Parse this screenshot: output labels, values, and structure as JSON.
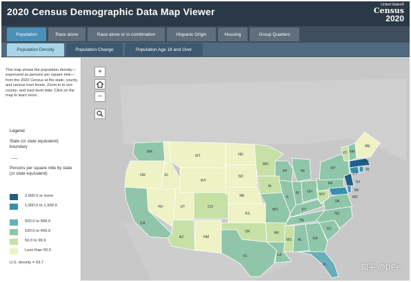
{
  "header": {
    "title": "2020 Census Demographic Data Map Viewer",
    "logo_small": "United States®",
    "logo_big": "Census",
    "logo_year": "2020"
  },
  "main_tabs": [
    {
      "label": "Population",
      "active": true
    },
    {
      "label": "Race alone",
      "active": false
    },
    {
      "label": "Race alone or in combination",
      "active": false
    },
    {
      "label": "Hispanic Origin",
      "active": false
    },
    {
      "label": "Housing",
      "active": false
    },
    {
      "label": "Group Quarters",
      "active": false
    }
  ],
  "sub_tabs": [
    {
      "label": "Population Density",
      "active": true
    },
    {
      "label": "Population Change",
      "active": false
    },
    {
      "label": "Population Age 18 and Over",
      "active": false
    }
  ],
  "panel": {
    "intro": "This map shows the population density—expressed as persons per square mile—from the 2020 Census at the state, county, and census tract levels. Zoom in to see county- and tract-level data. Click on the map to learn more.",
    "legend_title": "Legend",
    "boundary_label": "State (or state equivalent) boundary",
    "persons_label": "Persons per square mile by state (or state equivalent)",
    "legend_items": [
      {
        "label": "2,000.0 or more",
        "color": "#1f5f86"
      },
      {
        "label": "1,000.0 to 1,999.9",
        "color": "#3b8fae"
      },
      {
        "label": "500.0 to 999.9",
        "color": "#6aaeba"
      },
      {
        "label": "100.0 to 499.9",
        "color": "#8fc5a8"
      },
      {
        "label": "50.0 to 99.9",
        "color": "#c6e0a6"
      },
      {
        "label": "Less than 50.0",
        "color": "#eef2c4"
      }
    ],
    "us_density": "U.S. density = 93.7"
  },
  "map_controls": {
    "zoom_in": "+",
    "home_icon": "home-icon",
    "zoom_out": "−",
    "search_icon": "search-icon"
  },
  "state_labels": [
    "WA",
    "OR",
    "ID",
    "MT",
    "WY",
    "NV",
    "UT",
    "CO",
    "CA",
    "AZ",
    "NM",
    "ND",
    "SD",
    "NE",
    "KS",
    "OK",
    "TX",
    "MN",
    "IA",
    "MO",
    "AR",
    "LA",
    "WI",
    "IL",
    "MS",
    "AL",
    "GA",
    "FL",
    "MI",
    "IN",
    "OH",
    "KY",
    "TN",
    "SC",
    "NC",
    "VA",
    "WV",
    "PA",
    "NY",
    "VT",
    "NH",
    "ME",
    "MA",
    "CT",
    "NJ",
    "MD",
    "DE",
    "RI"
  ],
  "watermark": "知乎 @DPer"
}
